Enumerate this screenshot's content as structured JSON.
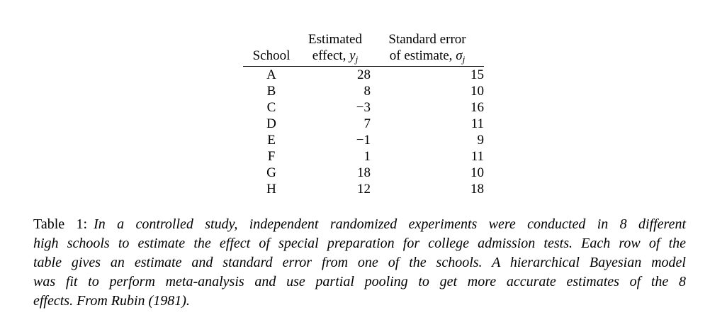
{
  "table": {
    "header": {
      "school": "School",
      "effect_line1": "Estimated",
      "effect_line2_prefix": "effect, ",
      "effect_symbol": "y",
      "effect_subscript": "j",
      "se_line1": "Standard error",
      "se_line2_prefix": "of estimate, ",
      "se_symbol": "σ",
      "se_subscript": "j"
    },
    "rows": [
      {
        "school": "A",
        "effect": "28",
        "se": "15"
      },
      {
        "school": "B",
        "effect": "8",
        "se": "10"
      },
      {
        "school": "C",
        "effect": "−3",
        "se": "16"
      },
      {
        "school": "D",
        "effect": "7",
        "se": "11"
      },
      {
        "school": "E",
        "effect": "−1",
        "se": "9"
      },
      {
        "school": "F",
        "effect": "1",
        "se": "11"
      },
      {
        "school": "G",
        "effect": "18",
        "se": "10"
      },
      {
        "school": "H",
        "effect": "12",
        "se": "18"
      }
    ]
  },
  "caption": {
    "label": "Table 1:",
    "lines": [
      "In a controlled study, independent randomized experiments were conducted in 8 different",
      "high schools to estimate the effect of special preparation for college admission tests. Each row of the",
      "table gives an estimate and standard error from one of the schools. A hierarchical Bayesian model",
      "was fit to perform meta-analysis and use partial pooling to get more accurate estimates of the 8",
      "effects. From Rubin (1981)."
    ]
  },
  "colors": {
    "text": "#000000",
    "background": "#ffffff",
    "rule": "#000000"
  }
}
